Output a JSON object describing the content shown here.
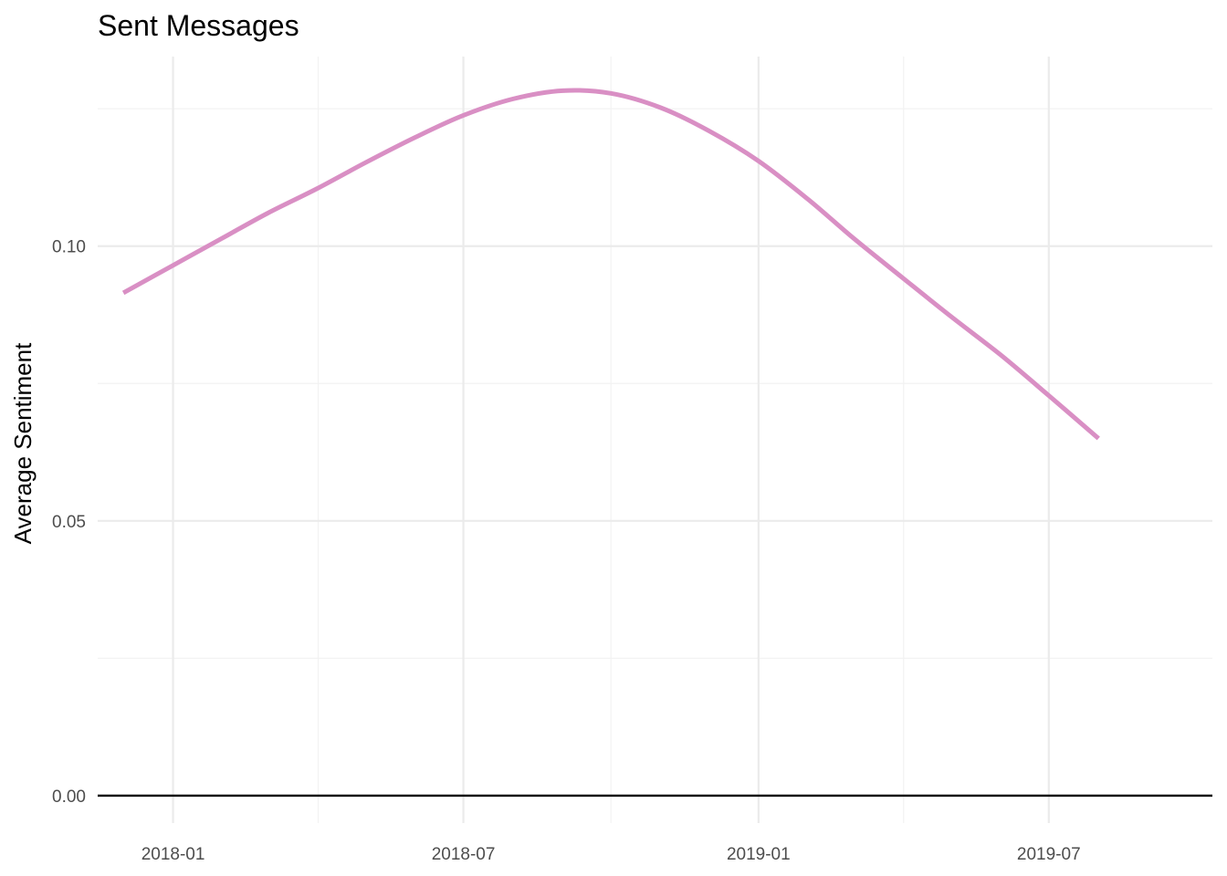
{
  "chart_data": {
    "type": "line",
    "title": "Sent Messages",
    "xlabel": "",
    "ylabel": "Average Sentiment",
    "x_ticks": [
      {
        "label": "2018-01",
        "date": "2018-01-01"
      },
      {
        "label": "2018-07",
        "date": "2018-07-01"
      },
      {
        "label": "2019-01",
        "date": "2019-01-01"
      },
      {
        "label": "2019-07",
        "date": "2019-07-01"
      }
    ],
    "y_ticks": [
      {
        "label": "0.00",
        "value": 0.0
      },
      {
        "label": "0.05",
        "value": 0.05
      },
      {
        "label": "0.10",
        "value": 0.1
      }
    ],
    "xlim": [
      "2017-11-15",
      "2019-10-11"
    ],
    "ylim": [
      -0.005,
      0.1345
    ],
    "hline": 0,
    "grid": true,
    "series": [
      {
        "color": "#d98fc4",
        "points": [
          {
            "x": "2017-12-01",
            "y": 0.0915
          },
          {
            "x": "2018-01-01",
            "y": 0.0965
          },
          {
            "x": "2018-02-01",
            "y": 0.1015
          },
          {
            "x": "2018-03-01",
            "y": 0.106
          },
          {
            "x": "2018-04-01",
            "y": 0.1105
          },
          {
            "x": "2018-05-01",
            "y": 0.1152
          },
          {
            "x": "2018-06-01",
            "y": 0.1198
          },
          {
            "x": "2018-07-01",
            "y": 0.1238
          },
          {
            "x": "2018-08-01",
            "y": 0.1268
          },
          {
            "x": "2018-09-01",
            "y": 0.1283
          },
          {
            "x": "2018-10-01",
            "y": 0.1278
          },
          {
            "x": "2018-11-01",
            "y": 0.1252
          },
          {
            "x": "2018-12-01",
            "y": 0.121
          },
          {
            "x": "2019-01-01",
            "y": 0.1155
          },
          {
            "x": "2019-02-01",
            "y": 0.1085
          },
          {
            "x": "2019-03-01",
            "y": 0.1015
          },
          {
            "x": "2019-04-01",
            "y": 0.0942
          },
          {
            "x": "2019-05-01",
            "y": 0.0872
          },
          {
            "x": "2019-06-01",
            "y": 0.0802
          },
          {
            "x": "2019-07-01",
            "y": 0.0728
          },
          {
            "x": "2019-08-01",
            "y": 0.065
          }
        ]
      }
    ]
  }
}
